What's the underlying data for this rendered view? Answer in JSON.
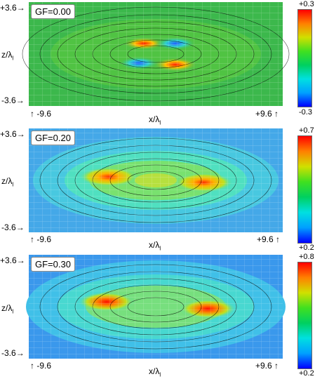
{
  "panels": [
    {
      "gf_label": "GF=0.00",
      "z_top": "+3.6",
      "z_bottom": "-3.6",
      "z_axis_label": "z/λ",
      "z_axis_sub": "l",
      "x_left": "-9.6",
      "x_right": "+9.6",
      "x_axis_label": "x/λ",
      "x_axis_sub": "l",
      "cbar_top": "+0.3",
      "cbar_bottom": "-0.3"
    },
    {
      "gf_label": "GF=0.20",
      "z_top": "+3.6",
      "z_bottom": "-3.6",
      "z_axis_label": "z/λ",
      "z_axis_sub": "l",
      "x_left": "-9.6",
      "x_right": "+9.6",
      "x_axis_label": "x/λ",
      "x_axis_sub": "l",
      "cbar_top": "+0.7",
      "cbar_bottom": "+0.2"
    },
    {
      "gf_label": "GF=0.30",
      "z_top": "+3.6",
      "z_bottom": "-3.6",
      "z_axis_label": "z/λ",
      "z_axis_sub": "l",
      "x_left": "-9.6",
      "x_right": "+9.6",
      "x_axis_label": "x/λ",
      "x_axis_sub": "l",
      "cbar_top": "+0.8",
      "cbar_bottom": "+0.2"
    }
  ],
  "colormap": [
    "#0000ff",
    "#00a0ff",
    "#00e0e0",
    "#00d060",
    "#40e020",
    "#d0e000",
    "#ff8000",
    "#ff0000"
  ],
  "backgrounds": [
    "#40c050",
    "#40c8e0",
    "#3cb8e8"
  ]
}
